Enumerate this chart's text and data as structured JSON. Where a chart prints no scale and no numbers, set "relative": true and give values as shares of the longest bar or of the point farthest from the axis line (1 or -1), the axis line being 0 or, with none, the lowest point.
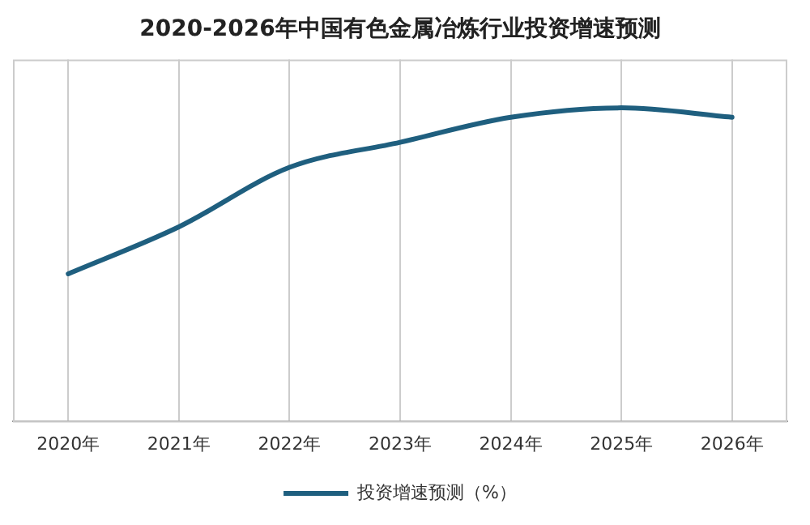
{
  "chart_data": {
    "type": "line",
    "title": "2020-2026年中国有色金属冶炼行业投资增速预测",
    "relative": true,
    "categories": [
      "2020年",
      "2021年",
      "2022年",
      "2023年",
      "2024年",
      "2025年",
      "2026年"
    ],
    "series": [
      {
        "name": "投资增速预测（%）",
        "color": "#1f5f7f",
        "values": [
          0.47,
          0.62,
          0.81,
          0.89,
          0.97,
          1,
          0.97
        ]
      }
    ],
    "grid": "x",
    "legend": "bottom",
    "marker": "none",
    "line_style": "solid"
  }
}
